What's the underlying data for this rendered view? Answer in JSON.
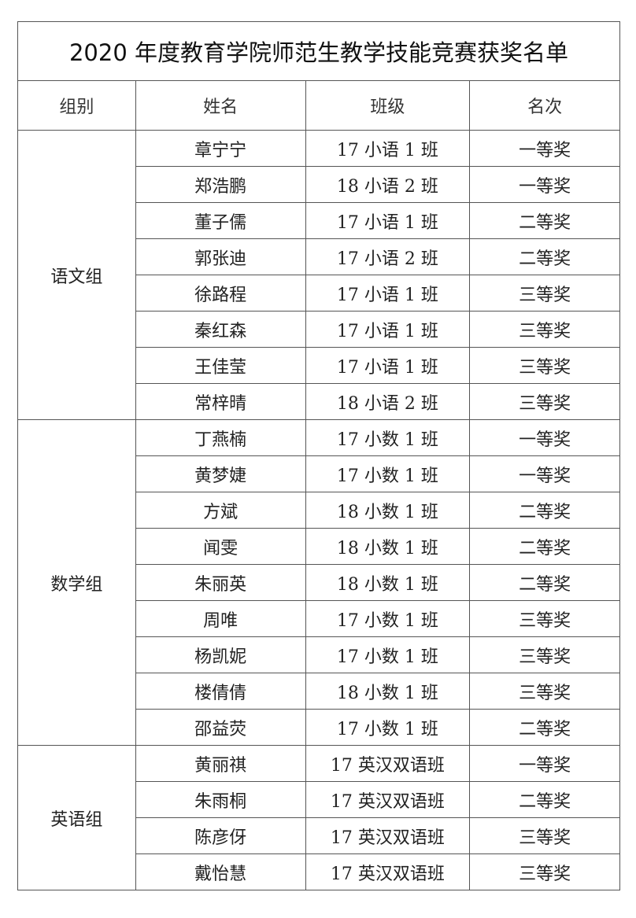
{
  "title": "2020 年度教育学院师范生教学技能竞赛获奖名单",
  "headers": [
    "组别",
    "姓名",
    "班级",
    "名次"
  ],
  "groups": [
    {
      "name": "语文组",
      "rows": [
        {
          "name": "章宁宁",
          "class": "17 小语 1 班",
          "rank": "一等奖"
        },
        {
          "name": "郑浩鹏",
          "class": "18 小语 2 班",
          "rank": "一等奖"
        },
        {
          "name": "董子儒",
          "class": "17 小语 1 班",
          "rank": "二等奖"
        },
        {
          "name": "郭张迪",
          "class": "17 小语 2 班",
          "rank": "二等奖"
        },
        {
          "name": "徐路程",
          "class": "17 小语 1 班",
          "rank": "三等奖"
        },
        {
          "name": "秦红森",
          "class": "17 小语 1 班",
          "rank": "三等奖"
        },
        {
          "name": "王佳莹",
          "class": "17 小语 1 班",
          "rank": "三等奖"
        },
        {
          "name": "常梓晴",
          "class": "18 小语 2 班",
          "rank": "三等奖"
        }
      ]
    },
    {
      "name": "数学组",
      "rows": [
        {
          "name": "丁燕楠",
          "class": "17 小数 1 班",
          "rank": "一等奖"
        },
        {
          "name": "黄梦婕",
          "class": "17 小数 1 班",
          "rank": "一等奖"
        },
        {
          "name": "方斌",
          "class": "18 小数 1 班",
          "rank": "二等奖"
        },
        {
          "name": "闻雯",
          "class": "18 小数 1 班",
          "rank": "二等奖"
        },
        {
          "name": "朱丽英",
          "class": "18 小数 1 班",
          "rank": "二等奖"
        },
        {
          "name": "周唯",
          "class": "17 小数 1 班",
          "rank": "三等奖"
        },
        {
          "name": "杨凯妮",
          "class": "17 小数 1 班",
          "rank": "三等奖"
        },
        {
          "name": "楼倩倩",
          "class": "18 小数 1 班",
          "rank": "三等奖"
        },
        {
          "name": "邵益荧",
          "class": "17 小数 1 班",
          "rank": "二等奖"
        }
      ]
    },
    {
      "name": "英语组",
      "rows": [
        {
          "name": "黄丽祺",
          "class": "17 英汉双语班",
          "rank": "一等奖"
        },
        {
          "name": "朱雨桐",
          "class": "17 英汉双语班",
          "rank": "二等奖"
        },
        {
          "name": "陈彦伢",
          "class": "17 英汉双语班",
          "rank": "三等奖"
        },
        {
          "name": "戴怡慧",
          "class": "17 英汉双语班",
          "rank": "三等奖"
        }
      ]
    }
  ]
}
